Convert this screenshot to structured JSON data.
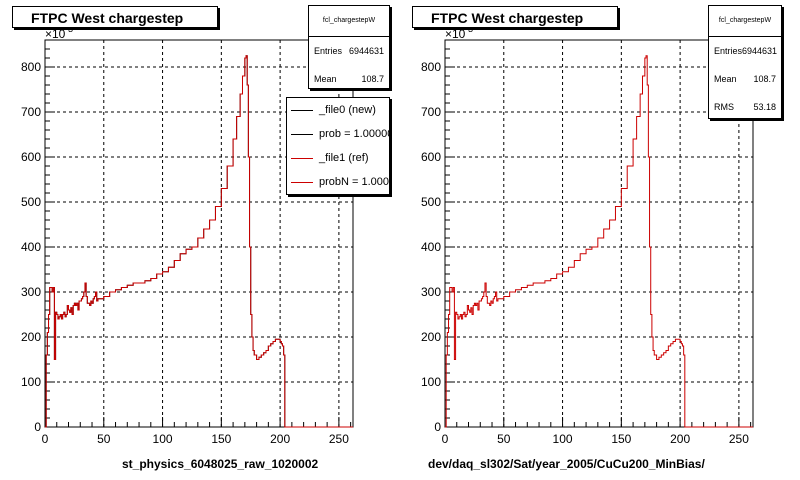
{
  "panels": [
    {
      "title": "FTPC West chargestep",
      "xlabel": "st_physics_6048025_raw_1020002",
      "stats": {
        "name": "fcl_chargestepW",
        "rows": [
          {
            "label": "Entries",
            "value": "6944631"
          },
          {
            "label": "Mean",
            "value": "108.7"
          }
        ]
      },
      "legend": [
        {
          "label": "_file0 (new)",
          "color": "#000000"
        },
        {
          "label": "prob = 1.000000",
          "color": "#000000"
        },
        {
          "label": "_file1 (ref)",
          "color": "#cc0000"
        },
        {
          "label": "probN = 1.000000",
          "color": "#cc0000"
        }
      ]
    },
    {
      "title": "FTPC West chargestep",
      "xlabel": "dev/daq_sl302/Sat/year_2005/CuCu200_MinBias/",
      "stats": {
        "name": "fcl_chargestepW",
        "rows": [
          {
            "label": "Entries",
            "value": "6944631"
          },
          {
            "label": "Mean",
            "value": "108.7"
          },
          {
            "label": "RMS",
            "value": "53.18"
          }
        ]
      },
      "legend": []
    }
  ],
  "axis_exponent": "×10",
  "axis_exponent_power": "3",
  "colors": {
    "new": "#000000",
    "ref": "#cc0000"
  },
  "chart_data": [
    {
      "type": "line",
      "xlim": [
        0,
        262
      ],
      "ylim": [
        0,
        860
      ],
      "xticks": [
        0,
        50,
        100,
        150,
        200,
        250
      ],
      "yticks": [
        0,
        100,
        200,
        300,
        400,
        500,
        600,
        700,
        800
      ],
      "grid": true,
      "x": [
        0,
        1,
        2,
        3,
        4,
        5,
        6,
        7,
        8,
        9,
        10,
        11,
        12,
        13,
        14,
        15,
        16,
        17,
        18,
        19,
        20,
        21,
        22,
        23,
        24,
        25,
        26,
        27,
        28,
        29,
        30,
        31,
        32,
        33,
        34,
        35,
        36,
        37,
        38,
        39,
        40,
        41,
        42,
        43,
        44,
        45,
        50,
        55,
        60,
        65,
        70,
        75,
        80,
        85,
        90,
        95,
        100,
        105,
        110,
        115,
        120,
        125,
        130,
        135,
        140,
        145,
        150,
        155,
        160,
        163,
        166,
        168,
        170,
        171,
        172,
        173,
        174,
        175,
        176,
        177,
        178,
        180,
        182,
        184,
        186,
        188,
        190,
        192,
        194,
        196,
        198,
        200,
        201,
        202,
        203,
        204,
        262
      ],
      "series": [
        {
          "values": [
            0,
            160,
            210,
            250,
            310,
            310,
            300,
            310,
            150,
            255,
            250,
            240,
            245,
            250,
            240,
            250,
            255,
            245,
            250,
            270,
            260,
            255,
            265,
            250,
            270,
            275,
            270,
            275,
            260,
            280,
            280,
            285,
            290,
            300,
            320,
            290,
            275,
            275,
            270,
            280,
            275,
            285,
            290,
            300,
            280,
            285,
            290,
            300,
            305,
            310,
            315,
            320,
            320,
            325,
            330,
            340,
            345,
            355,
            370,
            385,
            395,
            400,
            420,
            440,
            460,
            490,
            530,
            580,
            640,
            690,
            740,
            780,
            820,
            825,
            760,
            600,
            400,
            250,
            200,
            170,
            160,
            150,
            155,
            160,
            165,
            170,
            180,
            185,
            190,
            195,
            195,
            190,
            185,
            180,
            160,
            0,
            0
          ]
        },
        {
          "values": [
            0,
            160,
            210,
            250,
            310,
            310,
            300,
            310,
            150,
            255,
            250,
            240,
            245,
            250,
            240,
            250,
            255,
            245,
            250,
            270,
            260,
            255,
            265,
            250,
            270,
            275,
            270,
            275,
            260,
            280,
            280,
            285,
            290,
            300,
            320,
            290,
            275,
            275,
            270,
            280,
            275,
            285,
            290,
            300,
            280,
            285,
            290,
            300,
            305,
            310,
            315,
            320,
            320,
            325,
            330,
            340,
            345,
            355,
            370,
            385,
            395,
            400,
            420,
            440,
            460,
            490,
            530,
            580,
            640,
            690,
            740,
            780,
            820,
            825,
            760,
            600,
            400,
            250,
            200,
            170,
            160,
            150,
            155,
            160,
            165,
            170,
            180,
            185,
            190,
            195,
            195,
            190,
            185,
            180,
            160,
            0,
            0
          ]
        }
      ]
    },
    {
      "type": "line",
      "xlim": [
        0,
        262
      ],
      "ylim": [
        0,
        860
      ],
      "xticks": [
        0,
        50,
        100,
        150,
        200,
        250
      ],
      "yticks": [
        0,
        100,
        200,
        300,
        400,
        500,
        600,
        700,
        800
      ],
      "grid": true,
      "x": [
        0,
        1,
        2,
        3,
        4,
        5,
        6,
        7,
        8,
        9,
        10,
        11,
        12,
        13,
        14,
        15,
        16,
        17,
        18,
        19,
        20,
        21,
        22,
        23,
        24,
        25,
        26,
        27,
        28,
        29,
        30,
        31,
        32,
        33,
        34,
        35,
        36,
        37,
        38,
        39,
        40,
        41,
        42,
        43,
        44,
        45,
        50,
        55,
        60,
        65,
        70,
        75,
        80,
        85,
        90,
        95,
        100,
        105,
        110,
        115,
        120,
        125,
        130,
        135,
        140,
        145,
        150,
        155,
        160,
        163,
        166,
        168,
        170,
        171,
        172,
        173,
        174,
        175,
        176,
        177,
        178,
        180,
        182,
        184,
        186,
        188,
        190,
        192,
        194,
        196,
        198,
        200,
        201,
        202,
        203,
        204,
        262
      ],
      "series": [
        {
          "values": [
            0,
            160,
            210,
            250,
            310,
            310,
            300,
            310,
            150,
            255,
            250,
            240,
            245,
            250,
            240,
            250,
            255,
            245,
            250,
            270,
            260,
            255,
            265,
            250,
            270,
            275,
            270,
            275,
            260,
            280,
            280,
            285,
            290,
            300,
            320,
            290,
            275,
            275,
            270,
            280,
            275,
            285,
            290,
            300,
            280,
            285,
            290,
            300,
            305,
            310,
            315,
            320,
            320,
            325,
            330,
            340,
            345,
            355,
            370,
            385,
            395,
            400,
            420,
            440,
            460,
            490,
            530,
            580,
            640,
            690,
            740,
            780,
            820,
            825,
            760,
            600,
            400,
            250,
            200,
            170,
            160,
            150,
            155,
            160,
            165,
            170,
            180,
            185,
            190,
            195,
            195,
            190,
            185,
            180,
            160,
            0,
            0
          ]
        }
      ]
    }
  ]
}
